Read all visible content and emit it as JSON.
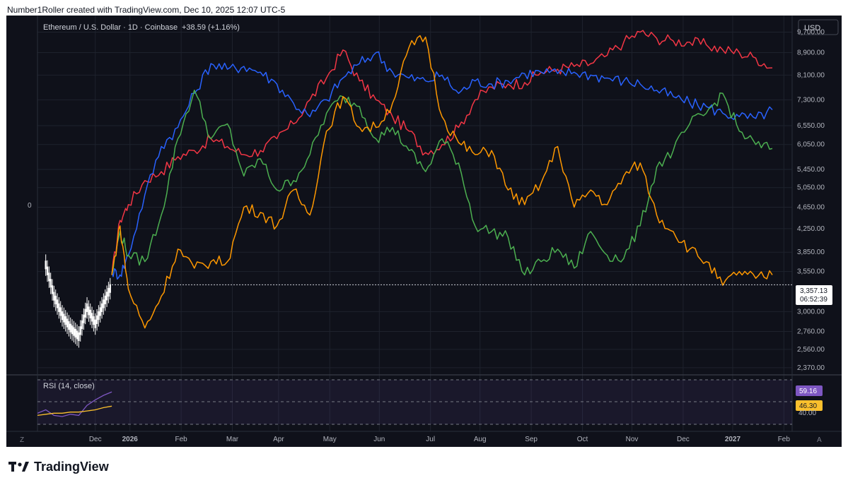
{
  "header": {
    "credit": "Number1Roller created with TradingView.com, Dec 10, 2025 12:07 UTC-5"
  },
  "brand": {
    "name": "TradingView"
  },
  "legend": {
    "symbol_line": "Ethereum / U.S. Dollar · 1D · Coinbase",
    "change": "+38.59 (+1.16%)"
  },
  "price_axis": {
    "currency": "USD",
    "ticks": [
      "9,700.00",
      "8,900.00",
      "8,100.00",
      "7,300.00",
      "6,550.00",
      "6,050.00",
      "5,450.00",
      "5,050.00",
      "4,650.00",
      "4,250.00",
      "3,850.00",
      "3,550.00",
      "3,000.00",
      "2,760.00",
      "2,560.00",
      "2,370.00"
    ],
    "current_price": "3,357.13",
    "countdown": "06:52:39",
    "left_scale_label": "0"
  },
  "rsi": {
    "label": "RSI (14, close)",
    "value_badge": "59.16",
    "ma_badge": "46.30",
    "tick": "40.00"
  },
  "time_axis": {
    "labels": [
      "Dec",
      "2026",
      "Feb",
      "Mar",
      "Apr",
      "May",
      "Jun",
      "Jul",
      "Aug",
      "Sep",
      "Oct",
      "Nov",
      "Dec",
      "2027",
      "Feb"
    ],
    "left_button": "Z",
    "right_button": "A"
  },
  "colors": {
    "background": "#0f111a",
    "red": "#f23645",
    "blue": "#2962ff",
    "green": "#4caf50",
    "orange": "#ff9800",
    "rsi_line": "#7e57c2",
    "rsi_ma": "#fbc02d"
  },
  "chart_data": {
    "type": "line",
    "title": "Ethereum / U.S. Dollar · 1D · Coinbase",
    "ylabel": "USD",
    "y_scale": "log",
    "ylim": [
      2300,
      10400
    ],
    "x_range_days": [
      -45,
      412
    ],
    "x_unit": "days since 2025-12-10",
    "history": {
      "name": "ETH daily (actual)",
      "x": [
        -40,
        -35,
        -30,
        -25,
        -20,
        -15,
        -10,
        -5,
        0
      ],
      "values": [
        3650,
        3200,
        2950,
        2800,
        2700,
        3050,
        2850,
        3100,
        3357
      ]
    },
    "series": [
      {
        "name": "red projection",
        "color": "red",
        "x": [
          0,
          5,
          10,
          20,
          30,
          40,
          50,
          60,
          70,
          80,
          90,
          100,
          110,
          120,
          130,
          140,
          150,
          160,
          170,
          180,
          190,
          200,
          210,
          220,
          230,
          240,
          250,
          260,
          270,
          280,
          290,
          300,
          310,
          320,
          330,
          340,
          350,
          360,
          370,
          380,
          390,
          400
        ],
        "values": [
          3500,
          4400,
          4700,
          5200,
          5400,
          5750,
          5900,
          6200,
          6000,
          5800,
          5900,
          6200,
          6600,
          7300,
          8000,
          9000,
          7900,
          7300,
          6800,
          6400,
          5850,
          6050,
          6500,
          7300,
          7700,
          7800,
          7850,
          8200,
          8300,
          8400,
          8500,
          8800,
          9300,
          9700,
          9450,
          9350,
          9300,
          9200,
          9000,
          8900,
          8700,
          8350
        ]
      },
      {
        "name": "blue projection",
        "color": "blue",
        "x": [
          0,
          5,
          10,
          20,
          30,
          40,
          50,
          60,
          70,
          80,
          90,
          100,
          110,
          120,
          130,
          140,
          150,
          160,
          170,
          180,
          190,
          200,
          210,
          220,
          230,
          240,
          250,
          260,
          270,
          280,
          290,
          300,
          310,
          320,
          330,
          340,
          350,
          360,
          370,
          380,
          390,
          400
        ],
        "values": [
          3550,
          3500,
          3800,
          4900,
          6000,
          6500,
          7500,
          8500,
          8300,
          8400,
          8200,
          7800,
          7200,
          6800,
          7300,
          8000,
          8500,
          8900,
          8200,
          8000,
          7900,
          8100,
          7500,
          7900,
          7800,
          7900,
          8150,
          8200,
          8150,
          8200,
          8100,
          8000,
          7900,
          7800,
          7600,
          7400,
          7200,
          7100,
          6900,
          6800,
          6750,
          7000
        ]
      },
      {
        "name": "green projection",
        "color": "green",
        "x": [
          0,
          5,
          10,
          20,
          30,
          40,
          50,
          60,
          70,
          80,
          90,
          100,
          110,
          120,
          130,
          140,
          150,
          160,
          170,
          180,
          190,
          200,
          210,
          220,
          230,
          240,
          250,
          260,
          270,
          280,
          290,
          300,
          310,
          320,
          330,
          340,
          350,
          360,
          370,
          380,
          390,
          400
        ],
        "values": [
          3500,
          4200,
          3800,
          3700,
          4500,
          6200,
          7600,
          6200,
          6600,
          5300,
          5700,
          5000,
          5200,
          5800,
          6900,
          7400,
          7100,
          6200,
          6500,
          5900,
          5400,
          6200,
          5600,
          4300,
          4200,
          4100,
          3500,
          3700,
          3900,
          3600,
          4200,
          3800,
          3750,
          4300,
          5500,
          5900,
          6600,
          6900,
          7500,
          6400,
          6050,
          5950
        ]
      },
      {
        "name": "orange projection",
        "color": "orange",
        "x": [
          0,
          5,
          10,
          20,
          30,
          40,
          50,
          60,
          70,
          80,
          90,
          100,
          110,
          120,
          130,
          140,
          150,
          160,
          170,
          180,
          190,
          200,
          210,
          220,
          230,
          240,
          250,
          260,
          270,
          280,
          290,
          300,
          310,
          320,
          330,
          340,
          350,
          360,
          370,
          380,
          390,
          400
        ],
        "values": [
          3500,
          4300,
          3300,
          2800,
          3200,
          3900,
          3600,
          3700,
          3700,
          4650,
          4550,
          4300,
          5000,
          4500,
          6400,
          7400,
          6500,
          6500,
          7200,
          9100,
          9500,
          6800,
          6100,
          5800,
          5900,
          5000,
          4700,
          5150,
          6000,
          4650,
          5000,
          4700,
          5300,
          5600,
          4500,
          4200,
          3900,
          3700,
          3350,
          3550,
          3450,
          3500
        ]
      }
    ],
    "rsi": {
      "name": "RSI (14, close)",
      "x": [
        -45,
        -40,
        -35,
        -30,
        -25,
        -20,
        -15,
        -10,
        -5,
        0
      ],
      "values": [
        40,
        43,
        38,
        37,
        39,
        38,
        47,
        52,
        56,
        59.16
      ],
      "ma_values": [
        38,
        39,
        40,
        40,
        41,
        41,
        42,
        43,
        45,
        46.3
      ]
    }
  }
}
